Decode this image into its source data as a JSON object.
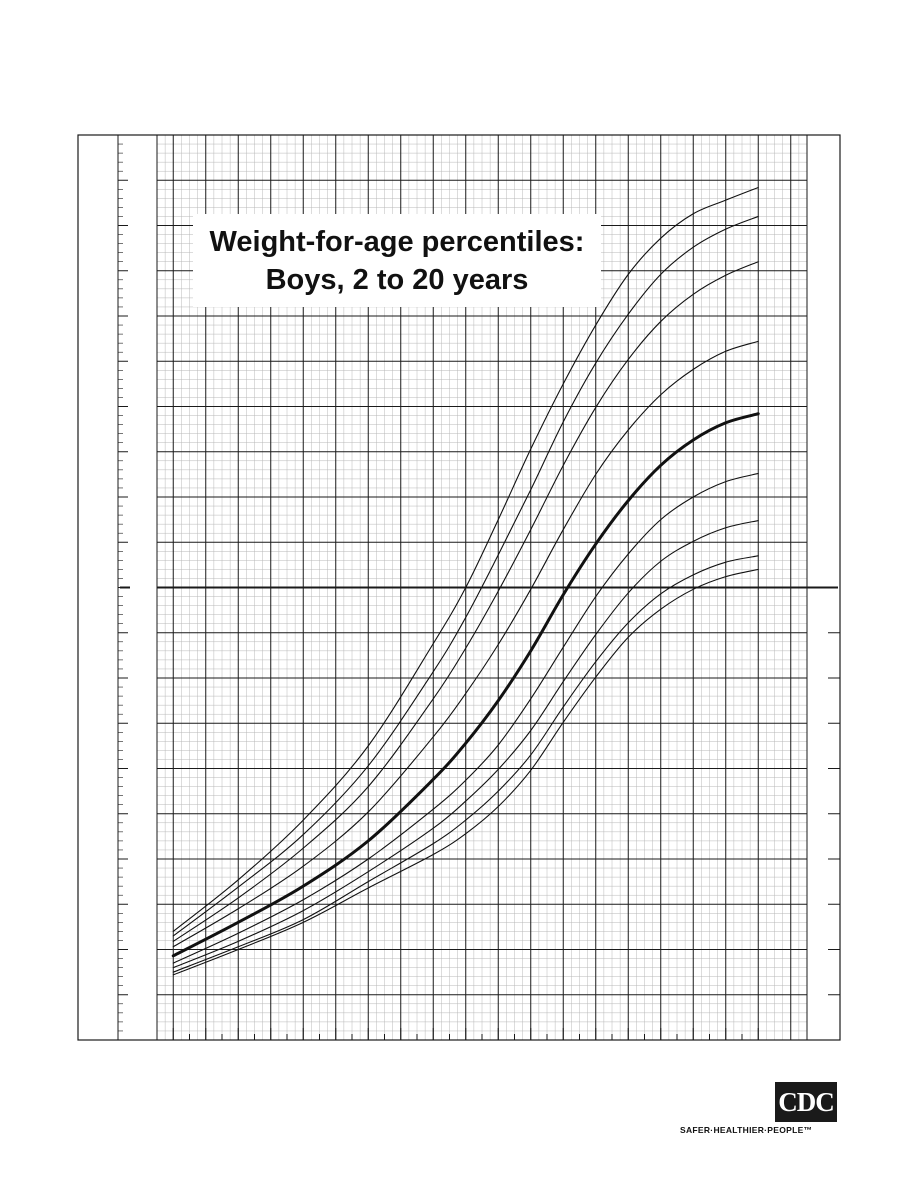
{
  "title": {
    "line1": "Weight-for-age percentiles:",
    "line2": "Boys, 2 to 20 years"
  },
  "logo": {
    "text": "CDC",
    "tagline": "SAFER·HEALTHIER·PEOPLE™"
  },
  "colors": {
    "grid_major": "#1a1a1a",
    "grid_minor": "#b8b8b8",
    "curve": "#111111",
    "background": "#ffffff"
  },
  "chart_data": {
    "type": "line",
    "title": "Weight-for-age percentiles: Boys, 2 to 20 years",
    "xlabel": "",
    "ylabel": "",
    "xlim": [
      1.5,
      21.5
    ],
    "ylim": [
      5,
      105
    ],
    "grid": true,
    "x": [
      2,
      4,
      6,
      8,
      10,
      11,
      12,
      13,
      14,
      15,
      16,
      17,
      18,
      19,
      20
    ],
    "series": [
      {
        "values": [
          12.2,
          15.0,
          18.0,
          21.8,
          25.5,
          27.8,
          30.8,
          34.8,
          40.1,
          45.1,
          49.5,
          52.6,
          54.8,
          56.2,
          57.0
        ],
        "bold": false
      },
      {
        "values": [
          12.5,
          15.3,
          18.3,
          22.5,
          26.7,
          29.3,
          32.5,
          36.5,
          41.8,
          46.8,
          51.1,
          54.3,
          56.4,
          57.8,
          58.5
        ],
        "bold": false
      },
      {
        "values": [
          13.0,
          15.9,
          19.3,
          23.6,
          28.4,
          31.4,
          34.9,
          39.2,
          44.6,
          49.8,
          54.4,
          57.9,
          60.1,
          61.6,
          62.4
        ],
        "bold": false
      },
      {
        "values": [
          13.5,
          16.8,
          20.5,
          25.0,
          30.5,
          33.7,
          37.6,
          42.7,
          48.4,
          54.0,
          58.7,
          62.5,
          65.0,
          66.7,
          67.6
        ],
        "bold": false
      },
      {
        "values": [
          14.3,
          18.0,
          22.0,
          27.0,
          33.8,
          37.8,
          42.5,
          48.0,
          54.2,
          59.8,
          64.6,
          68.5,
          71.3,
          73.2,
          74.2
        ],
        "bold": true
      },
      {
        "values": [
          15.3,
          19.5,
          24.2,
          30.2,
          38.5,
          43.3,
          48.7,
          54.8,
          61.4,
          67.5,
          72.4,
          76.3,
          79.1,
          81.1,
          82.2
        ],
        "bold": false
      },
      {
        "values": [
          15.9,
          20.7,
          26.2,
          33.0,
          42.7,
          48.3,
          54.6,
          61.4,
          68.5,
          74.9,
          80.2,
          84.4,
          87.4,
          89.5,
          91.0
        ],
        "bold": false
      },
      {
        "values": [
          16.5,
          21.9,
          27.7,
          35.3,
          45.7,
          51.7,
          58.6,
          65.8,
          73.3,
          79.8,
          85.2,
          89.6,
          92.6,
          94.6,
          96.0
        ],
        "bold": false
      },
      {
        "values": [
          17.0,
          22.7,
          29.3,
          37.5,
          48.8,
          55.0,
          62.5,
          70.3,
          77.5,
          84.0,
          89.6,
          93.6,
          96.3,
          97.8,
          99.2
        ],
        "bold": false
      }
    ]
  }
}
